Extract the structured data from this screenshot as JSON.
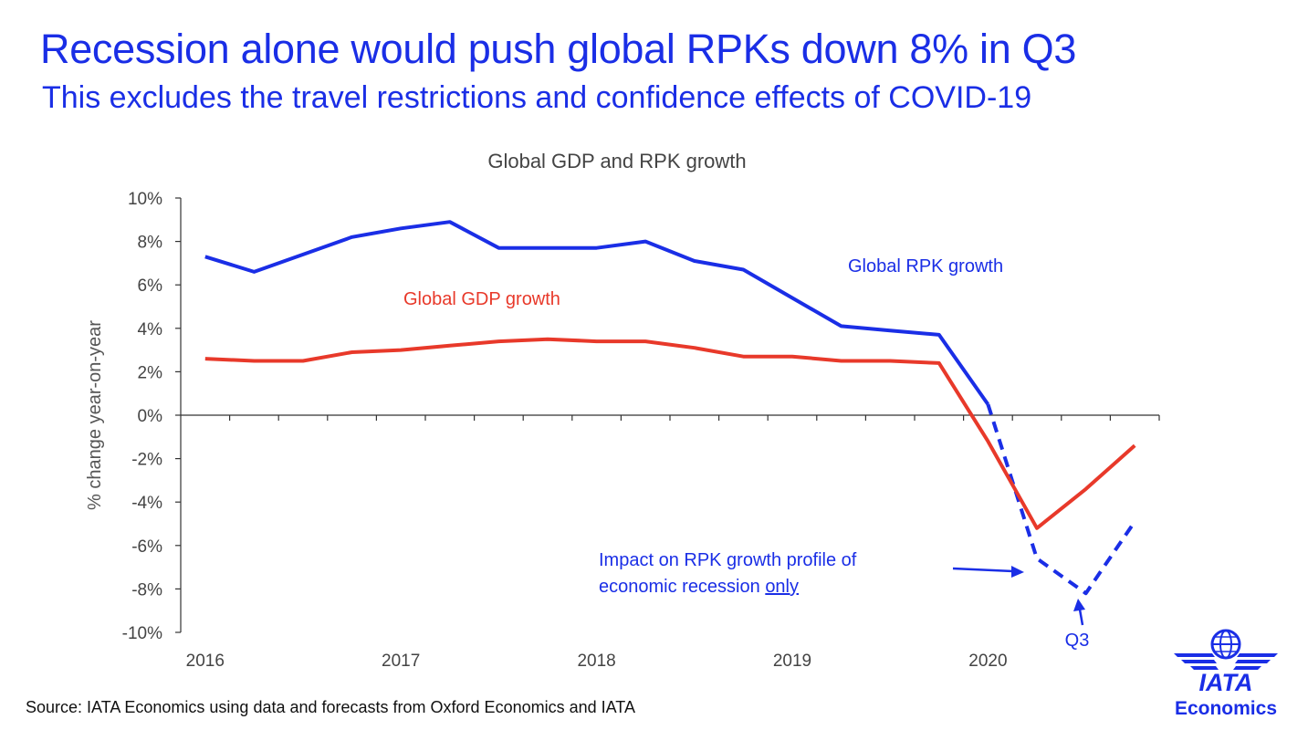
{
  "header": {
    "title": "Recession alone would push global RPKs down 8% in Q3",
    "subtitle": "This excludes the travel restrictions and confidence effects of COVID-19"
  },
  "footer": {
    "source": "Source: IATA Economics using data and forecasts from Oxford Economics and IATA"
  },
  "logo": {
    "name": "IATA",
    "unit": "Economics",
    "icon": "iata-globe-wings-icon",
    "color": "#1a2ee6"
  },
  "colors": {
    "rpk": "#1a2ee6",
    "gdp": "#e8392a",
    "axis": "#333333",
    "text": "#444444"
  },
  "chart_data": {
    "type": "line",
    "title": "Global GDP and RPK growth",
    "ylabel": "% change year-on-year",
    "xlabel": "",
    "ylim": [
      -10,
      10
    ],
    "y_ticks": [
      "10%",
      "8%",
      "6%",
      "4%",
      "2%",
      "0%",
      "-2%",
      "-4%",
      "-6%",
      "-8%",
      "-10%"
    ],
    "x_ticks": [
      "2016",
      "2017",
      "2018",
      "2019",
      "2020"
    ],
    "x_tick_positions": [
      2016,
      2017,
      2018,
      2019,
      2020
    ],
    "xlim": [
      2015.875,
      2020.875
    ],
    "grid": false,
    "series": [
      {
        "name": "Global RPK growth",
        "color": "#1a2ee6",
        "x": [
          2016,
          2016.25,
          2016.5,
          2016.75,
          2017,
          2017.25,
          2017.5,
          2017.75,
          2018,
          2018.25,
          2018.5,
          2018.75,
          2019,
          2019.25,
          2019.5,
          2019.75,
          2020
        ],
        "y": [
          7.3,
          6.6,
          7.4,
          8.2,
          8.6,
          8.9,
          7.7,
          7.7,
          7.7,
          8.0,
          7.1,
          6.7,
          5.4,
          4.1,
          3.9,
          3.7,
          0.5
        ],
        "style": "solid"
      },
      {
        "name": "Impact on RPK growth profile of economic recession only",
        "color": "#1a2ee6",
        "x": [
          2020,
          2020.25,
          2020.5,
          2020.75
        ],
        "y": [
          0.5,
          -6.6,
          -8.2,
          -4.9
        ],
        "style": "dashed"
      },
      {
        "name": "Global GDP growth",
        "color": "#e8392a",
        "x": [
          2016,
          2016.25,
          2016.5,
          2016.75,
          2017,
          2017.25,
          2017.5,
          2017.75,
          2018,
          2018.25,
          2018.5,
          2018.75,
          2019,
          2019.25,
          2019.5,
          2019.75,
          2020,
          2020.25,
          2020.5,
          2020.75
        ],
        "y": [
          2.6,
          2.5,
          2.5,
          2.9,
          3.0,
          3.2,
          3.4,
          3.5,
          3.4,
          3.4,
          3.1,
          2.7,
          2.7,
          2.5,
          2.5,
          2.4,
          -1.2,
          -5.2,
          -3.4,
          -1.4
        ],
        "style": "solid"
      }
    ],
    "annotations": {
      "rpk_label": "Global RPK growth",
      "gdp_label": "Global GDP growth",
      "impact_line1": "Impact on RPK growth profile of",
      "impact_line2_prefix": "economic recession ",
      "impact_line2_underlined": "only",
      "q3_label": "Q3"
    }
  }
}
